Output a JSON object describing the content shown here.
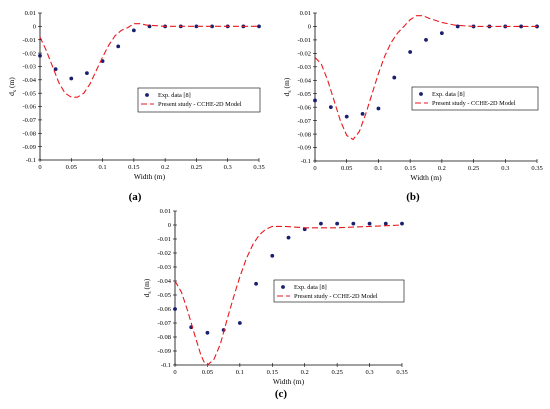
{
  "colors": {
    "model_line": "#e8191f",
    "exp_marker": "#1a1f6e",
    "axis": "#000000",
    "grid": "#cccccc"
  },
  "chart_data": [
    {
      "type": "scatter",
      "panel_label": "(a)",
      "xlabel": "Width (m)",
      "ylabel_main": "d",
      "ylabel_sub": "s",
      "ylabel_unit": " (m)",
      "xlim": [
        0,
        0.35
      ],
      "ylim": [
        -0.1,
        0.01
      ],
      "xticks": [
        "0",
        "0.05",
        "0.1",
        "0.15",
        "0.2",
        "0.25",
        "0.3",
        "0.35"
      ],
      "yticks": [
        "0.01",
        "0",
        "-0.01",
        "-0.02",
        "-0.03",
        "-0.04",
        "-0.05",
        "-0.06",
        "-0.07",
        "-0.08",
        "-0.09",
        "-0.1"
      ],
      "legend_position": "right",
      "legend": [
        "Exp. data [8]",
        "Present study -  CCHE-2D Model"
      ],
      "series": [
        {
          "name": "Exp. data [8]",
          "kind": "markers",
          "points": [
            [
              0,
              -0.022
            ],
            [
              0.025,
              -0.032
            ],
            [
              0.05,
              -0.039
            ],
            [
              0.075,
              -0.035
            ],
            [
              0.1,
              -0.026
            ],
            [
              0.125,
              -0.015
            ],
            [
              0.15,
              -0.003
            ],
            [
              0.175,
              0.0
            ],
            [
              0.2,
              0.0
            ],
            [
              0.225,
              0.0
            ],
            [
              0.25,
              0.0
            ],
            [
              0.275,
              0.0
            ],
            [
              0.3,
              0.0
            ],
            [
              0.325,
              0.0
            ],
            [
              0.35,
              0.0
            ]
          ]
        },
        {
          "name": "Present study -  CCHE-2D Model",
          "kind": "dashed-line",
          "points": [
            [
              0,
              -0.008
            ],
            [
              0.01,
              -0.018
            ],
            [
              0.02,
              -0.03
            ],
            [
              0.03,
              -0.042
            ],
            [
              0.04,
              -0.05
            ],
            [
              0.05,
              -0.053
            ],
            [
              0.06,
              -0.053
            ],
            [
              0.07,
              -0.05
            ],
            [
              0.08,
              -0.043
            ],
            [
              0.09,
              -0.033
            ],
            [
              0.1,
              -0.023
            ],
            [
              0.11,
              -0.014
            ],
            [
              0.12,
              -0.007
            ],
            [
              0.13,
              -0.003
            ],
            [
              0.14,
              -0.001
            ],
            [
              0.15,
              0.002
            ],
            [
              0.16,
              0.002
            ],
            [
              0.17,
              0.001
            ],
            [
              0.2,
              0.0
            ],
            [
              0.25,
              0.0
            ],
            [
              0.3,
              0.0
            ],
            [
              0.35,
              0.0
            ]
          ]
        }
      ]
    },
    {
      "type": "scatter",
      "panel_label": "(b)",
      "xlabel": "Width (m)",
      "ylabel_main": "d",
      "ylabel_sub": "s",
      "ylabel_unit": " (m)",
      "xlim": [
        0,
        0.35
      ],
      "ylim": [
        -0.1,
        0.01
      ],
      "xticks": [
        "0",
        "0.05",
        "0.1",
        "0.15",
        "0.2",
        "0.25",
        "0.3",
        "0.35"
      ],
      "yticks": [
        "0.01",
        "0",
        "-0.01",
        "-0.02",
        "-0.03",
        "-0.04",
        "-0.05",
        "-0.06",
        "-0.07",
        "-0.08",
        "-0.09",
        "-0.1"
      ],
      "legend_position": "right",
      "legend": [
        "Exp. data [8]",
        "Present study -  CCHE-2D Model"
      ],
      "series": [
        {
          "name": "Exp. data [8]",
          "kind": "markers",
          "points": [
            [
              0,
              -0.055
            ],
            [
              0.025,
              -0.06
            ],
            [
              0.05,
              -0.067
            ],
            [
              0.075,
              -0.065
            ],
            [
              0.1,
              -0.061
            ],
            [
              0.125,
              -0.038
            ],
            [
              0.15,
              -0.019
            ],
            [
              0.175,
              -0.01
            ],
            [
              0.2,
              -0.005
            ],
            [
              0.225,
              0.0
            ],
            [
              0.25,
              0.0
            ],
            [
              0.275,
              0.0
            ],
            [
              0.3,
              0.0
            ],
            [
              0.325,
              0.0
            ],
            [
              0.35,
              0.0
            ]
          ]
        },
        {
          "name": "Present study -  CCHE-2D Model",
          "kind": "dashed-line",
          "points": [
            [
              0,
              -0.023
            ],
            [
              0.01,
              -0.028
            ],
            [
              0.02,
              -0.04
            ],
            [
              0.03,
              -0.055
            ],
            [
              0.04,
              -0.07
            ],
            [
              0.05,
              -0.081
            ],
            [
              0.06,
              -0.084
            ],
            [
              0.07,
              -0.078
            ],
            [
              0.08,
              -0.065
            ],
            [
              0.09,
              -0.05
            ],
            [
              0.1,
              -0.035
            ],
            [
              0.11,
              -0.022
            ],
            [
              0.12,
              -0.012
            ],
            [
              0.13,
              -0.005
            ],
            [
              0.14,
              0.0
            ],
            [
              0.15,
              0.005
            ],
            [
              0.16,
              0.008
            ],
            [
              0.17,
              0.008
            ],
            [
              0.18,
              0.006
            ],
            [
              0.2,
              0.003
            ],
            [
              0.22,
              0.001
            ],
            [
              0.25,
              0.0
            ],
            [
              0.3,
              0.0
            ],
            [
              0.35,
              0.0
            ]
          ]
        }
      ]
    },
    {
      "type": "scatter",
      "panel_label": "(c)",
      "xlabel": "Width (m)",
      "ylabel_main": "d",
      "ylabel_sub": "s",
      "ylabel_unit": " (m)",
      "xlim": [
        0,
        0.35
      ],
      "ylim": [
        -0.1,
        0.01
      ],
      "xticks": [
        "0",
        "0.05",
        "0.1",
        "0.15",
        "0.2",
        "0.25",
        "0.3",
        "0.35"
      ],
      "yticks": [
        "0.01",
        "0",
        "-0.01",
        "-0.02",
        "-0.03",
        "-0.04",
        "-0.05",
        "-0.06",
        "-0.07",
        "-0.08",
        "-0.09",
        "-0.1"
      ],
      "legend_position": "bottom-right",
      "legend": [
        "Exp. data [8]",
        "Present study -  CCHE-2D Model"
      ],
      "series": [
        {
          "name": "Exp. data [8]",
          "kind": "markers",
          "points": [
            [
              0,
              -0.06
            ],
            [
              0.025,
              -0.073
            ],
            [
              0.05,
              -0.077
            ],
            [
              0.075,
              -0.075
            ],
            [
              0.1,
              -0.07
            ],
            [
              0.125,
              -0.042
            ],
            [
              0.15,
              -0.022
            ],
            [
              0.175,
              -0.009
            ],
            [
              0.2,
              -0.003
            ],
            [
              0.225,
              0.001
            ],
            [
              0.25,
              0.001
            ],
            [
              0.275,
              0.001
            ],
            [
              0.3,
              0.001
            ],
            [
              0.325,
              0.001
            ],
            [
              0.35,
              0.001
            ]
          ]
        },
        {
          "name": "Present study -  CCHE-2D Model",
          "kind": "dashed-line",
          "points": [
            [
              0,
              -0.04
            ],
            [
              0.01,
              -0.048
            ],
            [
              0.02,
              -0.062
            ],
            [
              0.03,
              -0.078
            ],
            [
              0.04,
              -0.093
            ],
            [
              0.045,
              -0.098
            ],
            [
              0.05,
              -0.1
            ],
            [
              0.06,
              -0.096
            ],
            [
              0.07,
              -0.085
            ],
            [
              0.08,
              -0.068
            ],
            [
              0.09,
              -0.052
            ],
            [
              0.1,
              -0.037
            ],
            [
              0.11,
              -0.024
            ],
            [
              0.12,
              -0.014
            ],
            [
              0.13,
              -0.007
            ],
            [
              0.14,
              -0.003
            ],
            [
              0.15,
              -0.001
            ],
            [
              0.17,
              -0.001
            ],
            [
              0.2,
              -0.002
            ],
            [
              0.25,
              -0.002
            ],
            [
              0.3,
              -0.001
            ],
            [
              0.35,
              0.0
            ]
          ]
        }
      ]
    }
  ]
}
